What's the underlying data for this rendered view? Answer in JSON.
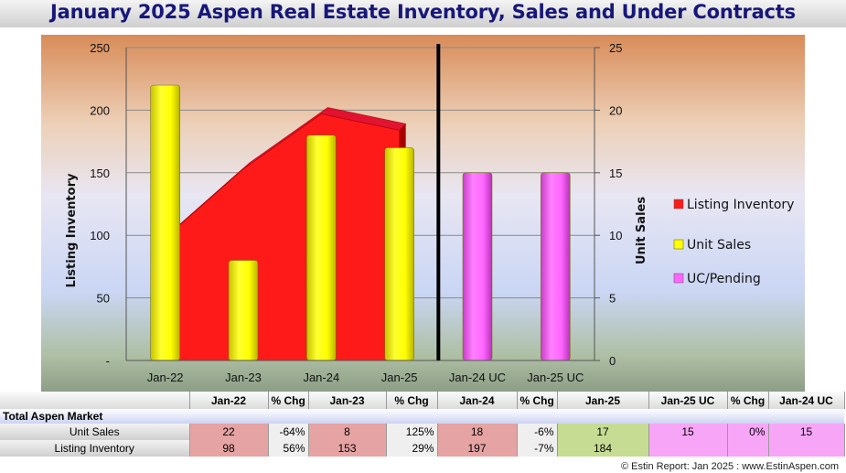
{
  "title": "January 2025 Aspen Real Estate Inventory, Sales and Under Contracts",
  "chart_data": {
    "type": "bar",
    "categories": [
      "Jan-22",
      "Jan-23",
      "Jan-24",
      "Jan-25",
      "Jan-24 UC",
      "Jan-25 UC"
    ],
    "ylabel": "Listing Inventory",
    "ylabel_right": "Unit Sales",
    "ylim": [
      0,
      250
    ],
    "ylim_right": [
      0,
      25
    ],
    "yticks": [
      "-",
      "50",
      "100",
      "150",
      "200",
      "250"
    ],
    "yticks_right": [
      "0",
      "5",
      "10",
      "15",
      "20",
      "25"
    ],
    "series": [
      {
        "name": "Listing Inventory",
        "type": "area",
        "axis": "left",
        "color": "#ff1a1a",
        "values": [
          98,
          153,
          197,
          184,
          null,
          null
        ]
      },
      {
        "name": "Unit Sales",
        "type": "bar",
        "axis": "right",
        "color": "#ffff00",
        "values": [
          22,
          8,
          18,
          17,
          null,
          null
        ]
      },
      {
        "name": "UC/Pending",
        "type": "bar",
        "axis": "right",
        "color": "#ff66ff",
        "values": [
          null,
          null,
          null,
          null,
          15,
          15
        ]
      }
    ],
    "legend_position": "right",
    "grid": true,
    "divider_after_category": 3
  },
  "table": {
    "headers": [
      "",
      "Jan-22",
      "% Chg",
      "Jan-23",
      "% Chg",
      "Jan-24",
      "% Chg",
      "Jan-25",
      "Jan-25 UC",
      "% Chg",
      "Jan-24 UC"
    ],
    "group_label": "Total Aspen Market",
    "rows": [
      {
        "label": "Unit Sales",
        "cells": [
          "22",
          "-64%",
          "8",
          "125%",
          "18",
          "-6%",
          "17",
          "15",
          "0%",
          "15"
        ]
      },
      {
        "label": "Listing Inventory",
        "cells": [
          "98",
          "56%",
          "153",
          "29%",
          "197",
          "-7%",
          "184",
          "",
          "",
          ""
        ]
      }
    ]
  },
  "footer": "© Estin Report: Jan 2025 : www.EstinAspen.com"
}
